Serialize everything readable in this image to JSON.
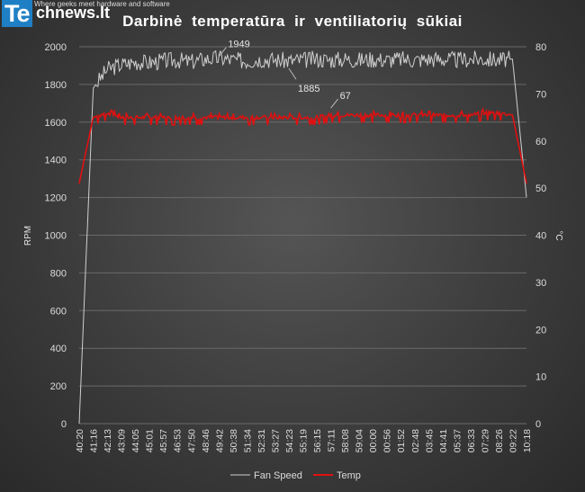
{
  "brand": {
    "logo_te": "Te",
    "logo_rest": "chnews.lt",
    "slogan": "Where geeks meet hardware and software"
  },
  "chart_data": {
    "type": "line",
    "title": "Darbinė temperatūra ir ventiliatorių sūkiai",
    "ylabel": "RPM",
    "y2label": "°C",
    "ylim": [
      0,
      2000
    ],
    "y2lim": [
      0,
      80
    ],
    "yticks": [
      0,
      200,
      400,
      600,
      800,
      1000,
      1200,
      1400,
      1600,
      1800,
      2000
    ],
    "y2ticks": [
      0,
      10,
      20,
      30,
      40,
      50,
      60,
      70,
      80
    ],
    "grid": true,
    "legend": "bottom",
    "x": [
      "40:20",
      "41:16",
      "42:13",
      "43:09",
      "44:05",
      "45:01",
      "45:57",
      "46:53",
      "47:50",
      "48:46",
      "49:42",
      "50:38",
      "51:34",
      "52:31",
      "53:27",
      "54:23",
      "55:19",
      "56:15",
      "57:11",
      "58:08",
      "59:04",
      "00:00",
      "00:56",
      "01:52",
      "02:48",
      "03:45",
      "04:41",
      "05:37",
      "06:33",
      "07:29",
      "08:26",
      "09:22",
      "10:18"
    ],
    "series": [
      {
        "name": "Fan Speed",
        "axis": "left",
        "color": "#cfcfcf",
        "values": [
          0,
          1780,
          1880,
          1905,
          1920,
          1915,
          1925,
          1930,
          1920,
          1935,
          1940,
          1930,
          1925,
          1935,
          1930,
          1925,
          1930,
          1935,
          1930,
          1935,
          1930,
          1935,
          1930,
          1935,
          1930,
          1935,
          1935,
          1930,
          1935,
          1935,
          1930,
          1935,
          1200
        ]
      },
      {
        "name": "Temp",
        "axis": "right",
        "color": "#e01010",
        "values": [
          51,
          65,
          66,
          65,
          65,
          65,
          65,
          65,
          65,
          65,
          65,
          65,
          65,
          65,
          65,
          65,
          65,
          65,
          65.5,
          65.5,
          65.5,
          65.5,
          65.5,
          65.5,
          65.5,
          65.5,
          65.5,
          65.5,
          65.5,
          66,
          66,
          65.5,
          51
        ]
      }
    ],
    "annotations": [
      {
        "text": "1949",
        "series": "Fan Speed",
        "x": "49:42",
        "value": 1949
      },
      {
        "text": "1885",
        "series": "Fan Speed",
        "x": "54:23",
        "value": 1885
      },
      {
        "text": "67",
        "series": "Temp",
        "x": "57:11",
        "value": 67
      }
    ]
  }
}
